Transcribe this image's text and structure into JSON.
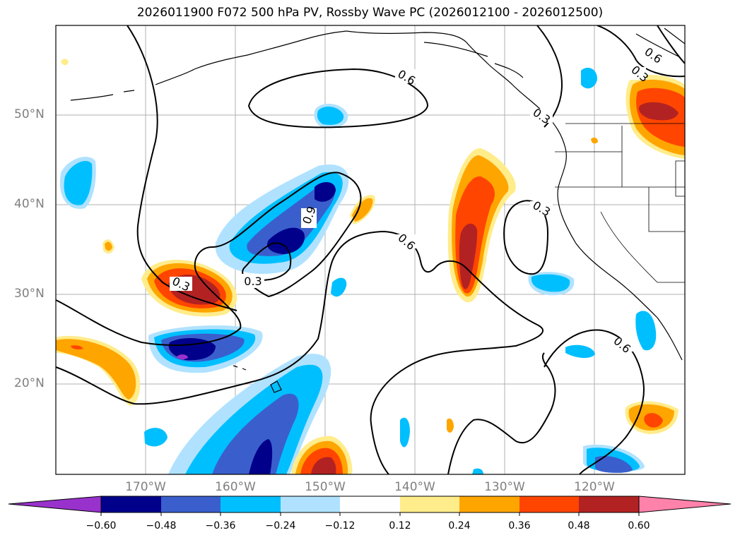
{
  "title": "2026011900 F072 500 hPa PV, Rossby Wave PC (2026012100 - 2026012500)",
  "lat_labels": [
    "50°N",
    "40°N",
    "30°N",
    "20°N"
  ],
  "lon_labels": [
    "170°W",
    "160°W",
    "150°W",
    "140°W",
    "130°W",
    "120°W"
  ],
  "contour_labels": [
    "0.6",
    "0.3",
    "0.6",
    "0.9",
    "0.3",
    "0.3",
    "0.6",
    "0.3",
    "0.3",
    "0.6",
    "0.3"
  ],
  "colorbar": {
    "ticks": [
      "−0.60",
      "−0.48",
      "−0.36",
      "−0.24",
      "−0.12",
      "0.12",
      "0.24",
      "0.36",
      "0.48",
      "0.60"
    ],
    "colors": [
      "#9932cc",
      "#00008b",
      "#3a5fcd",
      "#00bfff",
      "#b0e2ff",
      "#ffffff",
      "#ffec8b",
      "#ffa500",
      "#ff4500",
      "#b22222",
      "#ff82ab"
    ]
  }
}
